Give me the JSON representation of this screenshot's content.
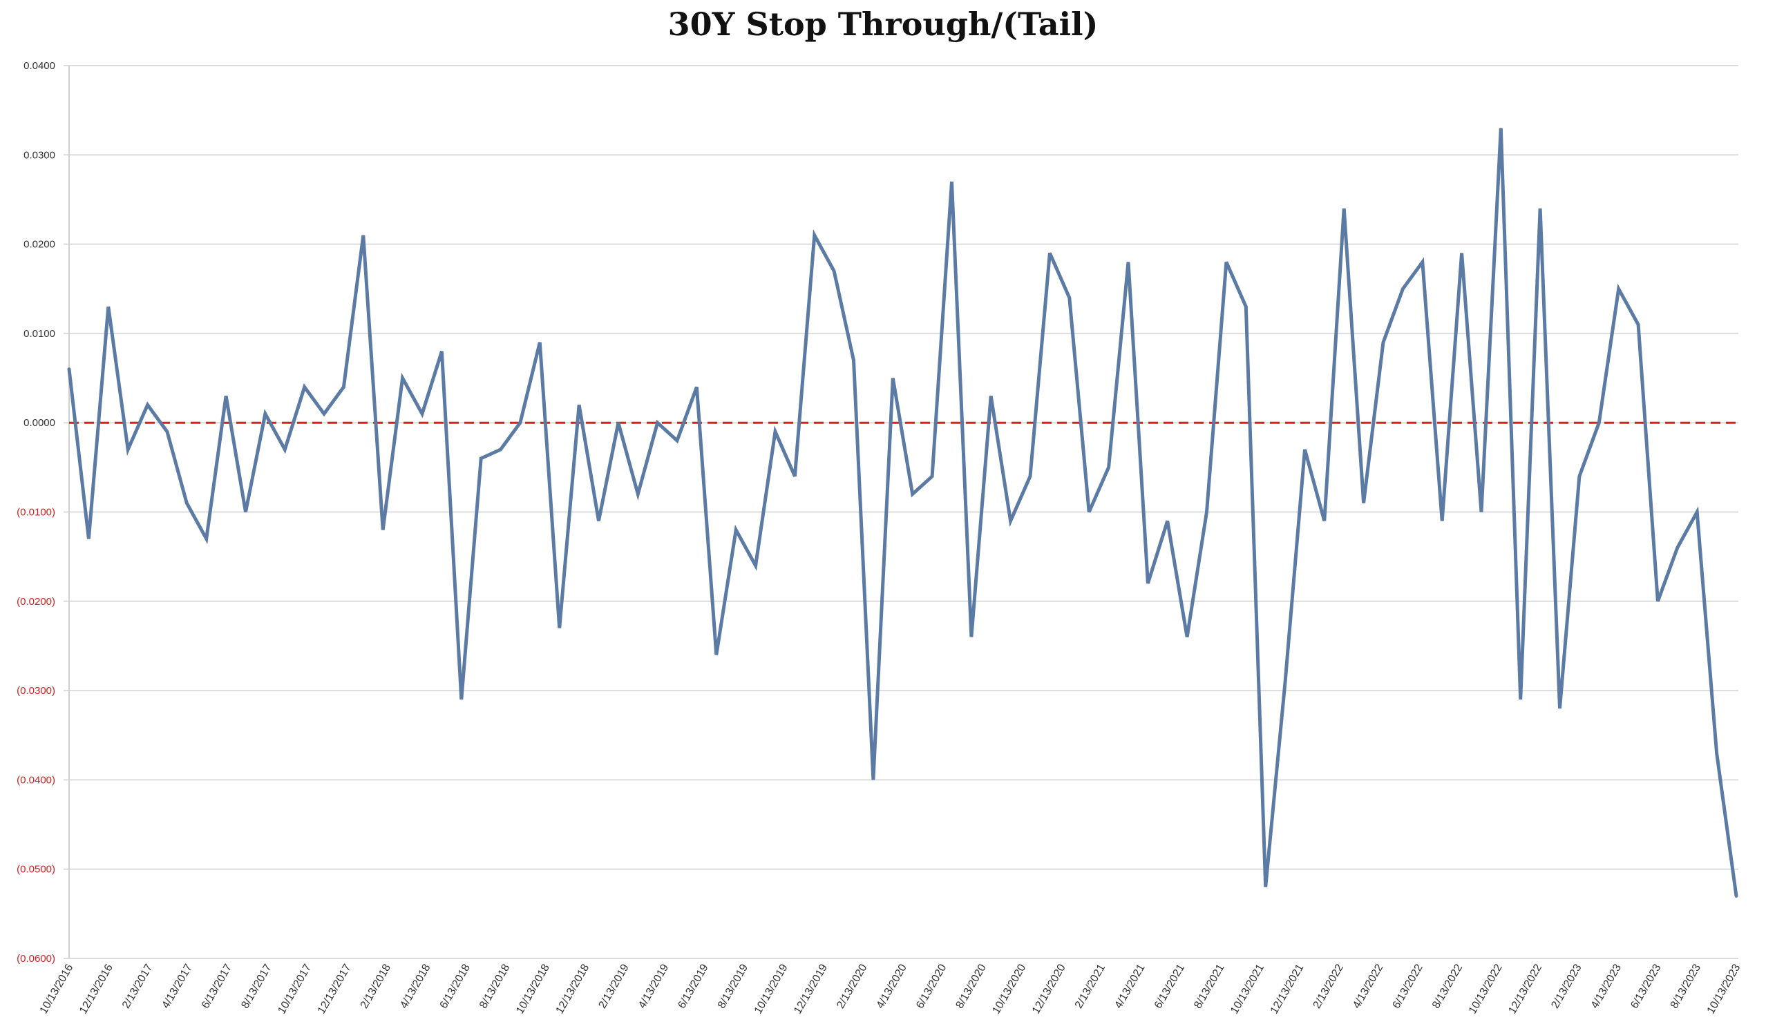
{
  "colors": {
    "line": "#5b7ba5",
    "zero_line": "#d42020",
    "grid": "#dcdcdc",
    "positive_label": "#333333",
    "negative_label": "#d42020"
  },
  "chart_data": {
    "type": "line",
    "title": "30Y Stop Through/(Tail)",
    "xlabel": "",
    "ylabel": "",
    "ylim": [
      -0.06,
      0.04
    ],
    "grid": true,
    "reference_line": {
      "y": 0.0,
      "style": "dashed",
      "color": "#d42020"
    },
    "y_tick_labels": [
      "0.0400",
      "0.0300",
      "0.0200",
      "0.0100",
      "0.0000",
      "(0.0100)",
      "(0.0200)",
      "(0.0300)",
      "(0.0400)",
      "(0.0500)",
      "(0.0600)"
    ],
    "y_tick_values": [
      0.04,
      0.03,
      0.02,
      0.01,
      0.0,
      -0.01,
      -0.02,
      -0.03,
      -0.04,
      -0.05,
      -0.06
    ],
    "x_tick_labels": [
      "10/13/2016",
      "12/13/2016",
      "2/13/2017",
      "4/13/2017",
      "6/13/2017",
      "8/13/2017",
      "10/13/2017",
      "12/13/2017",
      "2/13/2018",
      "4/13/2018",
      "6/13/2018",
      "8/13/2018",
      "10/13/2018",
      "12/13/2018",
      "2/13/2019",
      "4/13/2019",
      "6/13/2019",
      "8/13/2019",
      "10/13/2019",
      "12/13/2019",
      "2/13/2020",
      "4/13/2020",
      "6/13/2020",
      "8/13/2020",
      "10/13/2020",
      "12/13/2020",
      "2/13/2021",
      "4/13/2021",
      "6/13/2021",
      "8/13/2021",
      "10/13/2021",
      "12/13/2021",
      "2/13/2022",
      "4/13/2022",
      "6/13/2022",
      "8/13/2022",
      "10/13/2022",
      "12/13/2022",
      "2/13/2023",
      "4/13/2023",
      "6/13/2023",
      "8/13/2023",
      "10/13/2023"
    ],
    "series": [
      {
        "values": [
          0.006,
          -0.013,
          0.013,
          -0.003,
          0.002,
          -0.001,
          -0.009,
          -0.013,
          0.003,
          -0.01,
          0.001,
          -0.003,
          0.004,
          0.001,
          0.004,
          0.021,
          -0.012,
          0.005,
          0.001,
          0.008,
          -0.031,
          -0.004,
          -0.003,
          0.0,
          0.009,
          -0.023,
          0.002,
          -0.011,
          0.0,
          -0.008,
          0.0,
          -0.002,
          0.004,
          -0.026,
          -0.012,
          -0.016,
          -0.001,
          -0.006,
          0.021,
          0.017,
          0.007,
          -0.04,
          0.005,
          -0.008,
          -0.006,
          0.027,
          -0.024,
          0.003,
          -0.011,
          -0.006,
          0.019,
          0.014,
          -0.01,
          -0.005,
          0.018,
          -0.018,
          -0.011,
          -0.024,
          -0.01,
          0.018,
          0.013,
          -0.052,
          -0.029,
          -0.003,
          -0.011,
          0.024,
          -0.009,
          0.009,
          0.015,
          0.018,
          -0.011,
          0.019,
          -0.01,
          0.033,
          -0.031,
          0.024,
          -0.032,
          -0.006,
          0.0,
          0.015,
          0.011,
          -0.02,
          -0.014,
          -0.01,
          -0.037,
          -0.053
        ]
      }
    ]
  }
}
